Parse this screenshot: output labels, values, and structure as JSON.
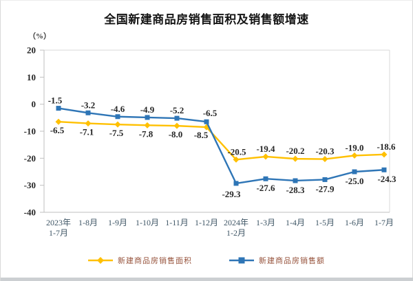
{
  "chart_data": {
    "type": "line",
    "title": "全国新建商品房销售面积及销售额增速",
    "unit_label": "（%）",
    "xlabel": "",
    "ylabel": "%",
    "ylim": [
      -40,
      20
    ],
    "yticks": [
      20,
      10,
      0,
      -10,
      -20,
      -30,
      -40
    ],
    "grid": false,
    "legend_position": "bottom",
    "categories": [
      "2023年\n1-7月",
      "1-8月",
      "1-9月",
      "1-10月",
      "1-11月",
      "1-12月",
      "2024年\n1-2月",
      "1-3月",
      "1-4月",
      "1-5月",
      "1-6月",
      "1-7月"
    ],
    "series": [
      {
        "name": "新建商品房销售面积",
        "marker": "diamond",
        "color": "#FFC000",
        "values": [
          -6.5,
          -7.1,
          -7.5,
          -7.8,
          -8.0,
          -8.5,
          -20.5,
          -19.4,
          -20.2,
          -20.3,
          -19.0,
          -18.6
        ]
      },
      {
        "name": "新建商品房销售额",
        "marker": "square",
        "color": "#2E75B6",
        "values": [
          -1.5,
          -3.2,
          -4.6,
          -4.9,
          -5.2,
          -6.5,
          -29.3,
          -27.6,
          -28.3,
          -27.9,
          -25.0,
          -24.3
        ]
      }
    ],
    "colors": {
      "axis": "#bfbfbf",
      "plot_border": "#d9d9d9",
      "data_label": "#262626",
      "tick_label": "#262626",
      "x_label": "#3E5565",
      "legend_text": "#96523B"
    }
  }
}
